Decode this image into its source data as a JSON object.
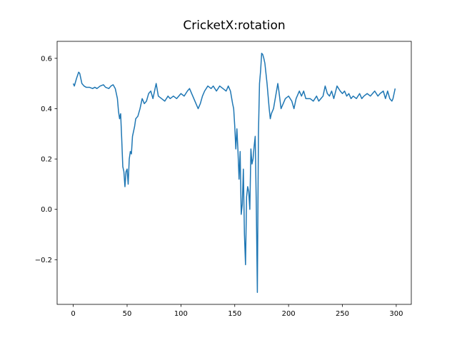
{
  "chart_data": {
    "type": "line",
    "title": "CricketX:rotation",
    "x": [
      0,
      1,
      3,
      5,
      6,
      8,
      10,
      12,
      15,
      18,
      20,
      22,
      25,
      28,
      30,
      33,
      35,
      37,
      39,
      40,
      41,
      42,
      43,
      44,
      45,
      46,
      47,
      48,
      49,
      50,
      51,
      52,
      53,
      54,
      55,
      57,
      58,
      60,
      62,
      64,
      66,
      68,
      70,
      72,
      74,
      76,
      77,
      79,
      82,
      85,
      88,
      90,
      93,
      96,
      100,
      103,
      106,
      108,
      110,
      112,
      114,
      116,
      118,
      120,
      122,
      125,
      128,
      130,
      133,
      136,
      139,
      142,
      144,
      146,
      148,
      149,
      150,
      151,
      152,
      153,
      154,
      155,
      156,
      157,
      158,
      159,
      160,
      161,
      162,
      163,
      164,
      165,
      166,
      167,
      168,
      169,
      170,
      171,
      172,
      173,
      174,
      175,
      176,
      177,
      178,
      179,
      180,
      181,
      182,
      183,
      184,
      186,
      188,
      190,
      191,
      193,
      195,
      197,
      200,
      203,
      205,
      207,
      210,
      212,
      214,
      216,
      220,
      223,
      226,
      228,
      230,
      232,
      234,
      236,
      238,
      240,
      242,
      245,
      248,
      250,
      252,
      254,
      256,
      258,
      260,
      263,
      266,
      268,
      270,
      273,
      276,
      278,
      280,
      283,
      285,
      288,
      290,
      292,
      294,
      296,
      297,
      298,
      299
    ],
    "series": [
      {
        "color": "#1f77b4",
        "values": [
          0.5,
          0.49,
          0.52,
          0.545,
          0.54,
          0.5,
          0.49,
          0.485,
          0.485,
          0.48,
          0.485,
          0.48,
          0.49,
          0.495,
          0.485,
          0.48,
          0.49,
          0.495,
          0.48,
          0.46,
          0.44,
          0.39,
          0.36,
          0.38,
          0.28,
          0.17,
          0.15,
          0.09,
          0.15,
          0.16,
          0.1,
          0.2,
          0.23,
          0.22,
          0.29,
          0.33,
          0.36,
          0.37,
          0.4,
          0.44,
          0.42,
          0.43,
          0.46,
          0.47,
          0.44,
          0.48,
          0.5,
          0.45,
          0.44,
          0.43,
          0.45,
          0.44,
          0.45,
          0.44,
          0.46,
          0.45,
          0.47,
          0.48,
          0.46,
          0.44,
          0.42,
          0.4,
          0.42,
          0.45,
          0.47,
          0.49,
          0.48,
          0.49,
          0.47,
          0.49,
          0.48,
          0.47,
          0.49,
          0.47,
          0.42,
          0.4,
          0.33,
          0.24,
          0.32,
          0.23,
          0.12,
          0.23,
          -0.02,
          0.02,
          0.16,
          -0.1,
          -0.22,
          0.05,
          0.09,
          0.07,
          0.0,
          0.24,
          0.18,
          0.2,
          0.25,
          0.29,
          0.02,
          -0.33,
          0.3,
          0.5,
          0.55,
          0.62,
          0.615,
          0.6,
          0.58,
          0.54,
          0.5,
          0.45,
          0.4,
          0.36,
          0.38,
          0.4,
          0.45,
          0.5,
          0.47,
          0.4,
          0.42,
          0.44,
          0.45,
          0.43,
          0.4,
          0.44,
          0.47,
          0.45,
          0.47,
          0.44,
          0.44,
          0.43,
          0.45,
          0.43,
          0.44,
          0.45,
          0.49,
          0.46,
          0.45,
          0.47,
          0.44,
          0.49,
          0.47,
          0.46,
          0.47,
          0.45,
          0.46,
          0.44,
          0.45,
          0.44,
          0.46,
          0.44,
          0.45,
          0.46,
          0.45,
          0.46,
          0.47,
          0.45,
          0.46,
          0.47,
          0.44,
          0.47,
          0.44,
          0.43,
          0.44,
          0.46,
          0.48
        ]
      }
    ],
    "xlim": [
      -15,
      314
    ],
    "xticks": [
      0,
      50,
      100,
      150,
      200,
      250,
      300
    ],
    "ylim": [
      -0.3775,
      0.6675
    ],
    "yticks": [
      {
        "value": -0.2,
        "label": "−0.2"
      },
      {
        "value": 0,
        "label": "0.0"
      },
      0.2,
      0.4,
      0.6
    ]
  }
}
